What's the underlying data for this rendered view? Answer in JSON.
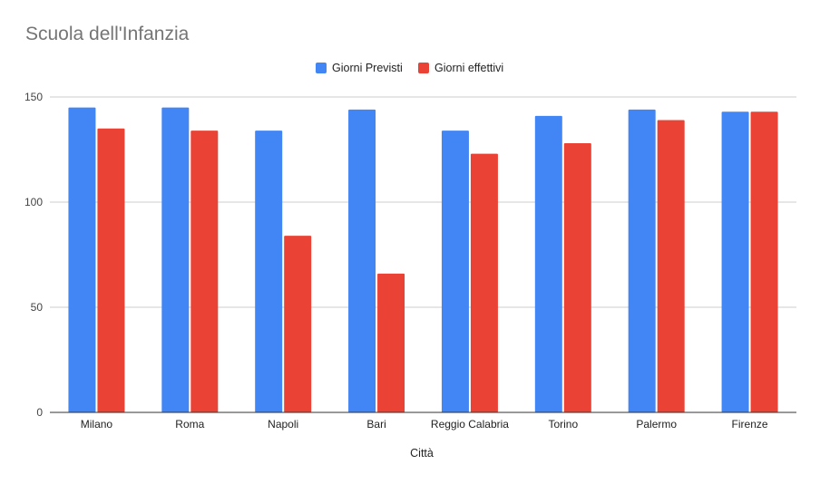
{
  "chart_data": {
    "type": "bar",
    "title": "Scuola dell'Infanzia",
    "xlabel": "Città",
    "ylabel": "",
    "ylim": [
      0,
      150
    ],
    "yticks": [
      0,
      50,
      100,
      150
    ],
    "grid": true,
    "legend_position": "top",
    "categories": [
      "Milano",
      "Roma",
      "Napoli",
      "Bari",
      "Reggio Calabria",
      "Torino",
      "Palermo",
      "Firenze"
    ],
    "series": [
      {
        "name": "Giorni Previsti",
        "color": "#4285f4",
        "values": [
          145,
          145,
          134,
          144,
          134,
          141,
          144,
          143
        ]
      },
      {
        "name": "Giorni effettivi",
        "color": "#ea4335",
        "values": [
          135,
          134,
          84,
          66,
          123,
          128,
          139,
          143
        ]
      }
    ]
  }
}
